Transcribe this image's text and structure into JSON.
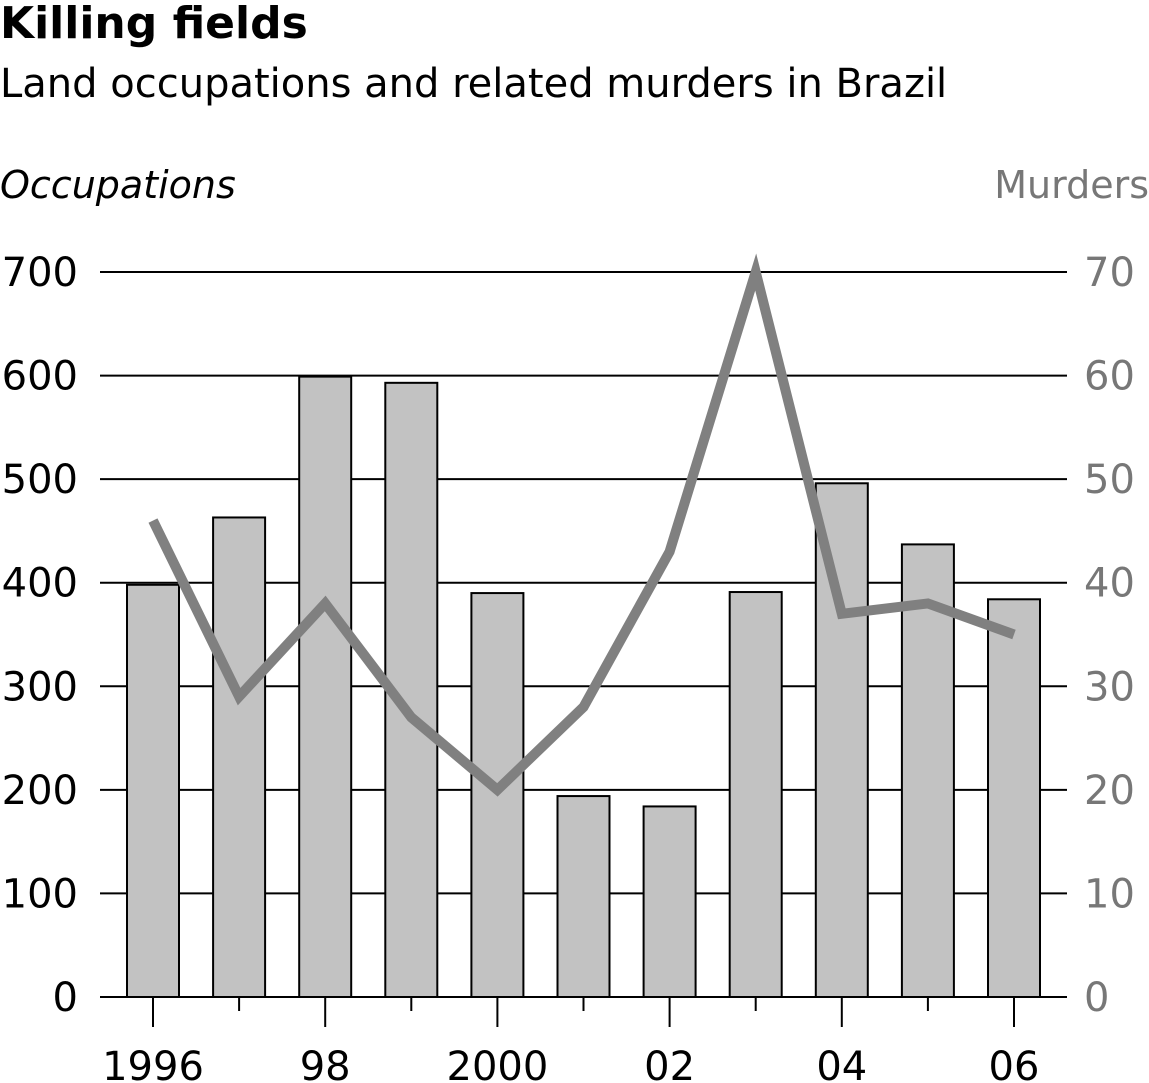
{
  "colors": {
    "bar_fill": "#c2c2c2",
    "bar_stroke": "#000000",
    "line": "#808080",
    "grid": "#000000",
    "right_axis_text": "#777777"
  },
  "chart_data": {
    "type": "bar+line",
    "title": "Killing fields",
    "subtitle": "Land occupations and related murders in Brazil",
    "ylabel_left": "Occupations",
    "ylabel_right": "Murders",
    "categories": [
      "1996",
      "1997",
      "1998",
      "1999",
      "2000",
      "2001",
      "2002",
      "2003",
      "2004",
      "2005",
      "2006"
    ],
    "x_tick_labels": [
      {
        "index": 0,
        "label": "1996"
      },
      {
        "index": 2,
        "label": "98"
      },
      {
        "index": 4,
        "label": "2000"
      },
      {
        "index": 6,
        "label": "02"
      },
      {
        "index": 8,
        "label": "04"
      },
      {
        "index": 10,
        "label": "06"
      }
    ],
    "series": [
      {
        "name": "Occupations",
        "type": "bar",
        "axis": "left",
        "values": [
          398,
          463,
          599,
          593,
          390,
          194,
          184,
          391,
          496,
          437,
          384
        ]
      },
      {
        "name": "Murders",
        "type": "line",
        "axis": "right",
        "values": [
          46,
          29,
          38,
          27,
          20,
          28,
          43,
          70,
          37,
          38,
          35
        ]
      }
    ],
    "ylim_left": [
      0,
      700
    ],
    "ylim_right": [
      0,
      70
    ],
    "yticks_left": [
      "0",
      "100",
      "200",
      "300",
      "400",
      "500",
      "600",
      "700"
    ],
    "yticks_right": [
      "0",
      "10",
      "20",
      "30",
      "40",
      "50",
      "60",
      "70"
    ],
    "grid": true,
    "legend": "none"
  }
}
